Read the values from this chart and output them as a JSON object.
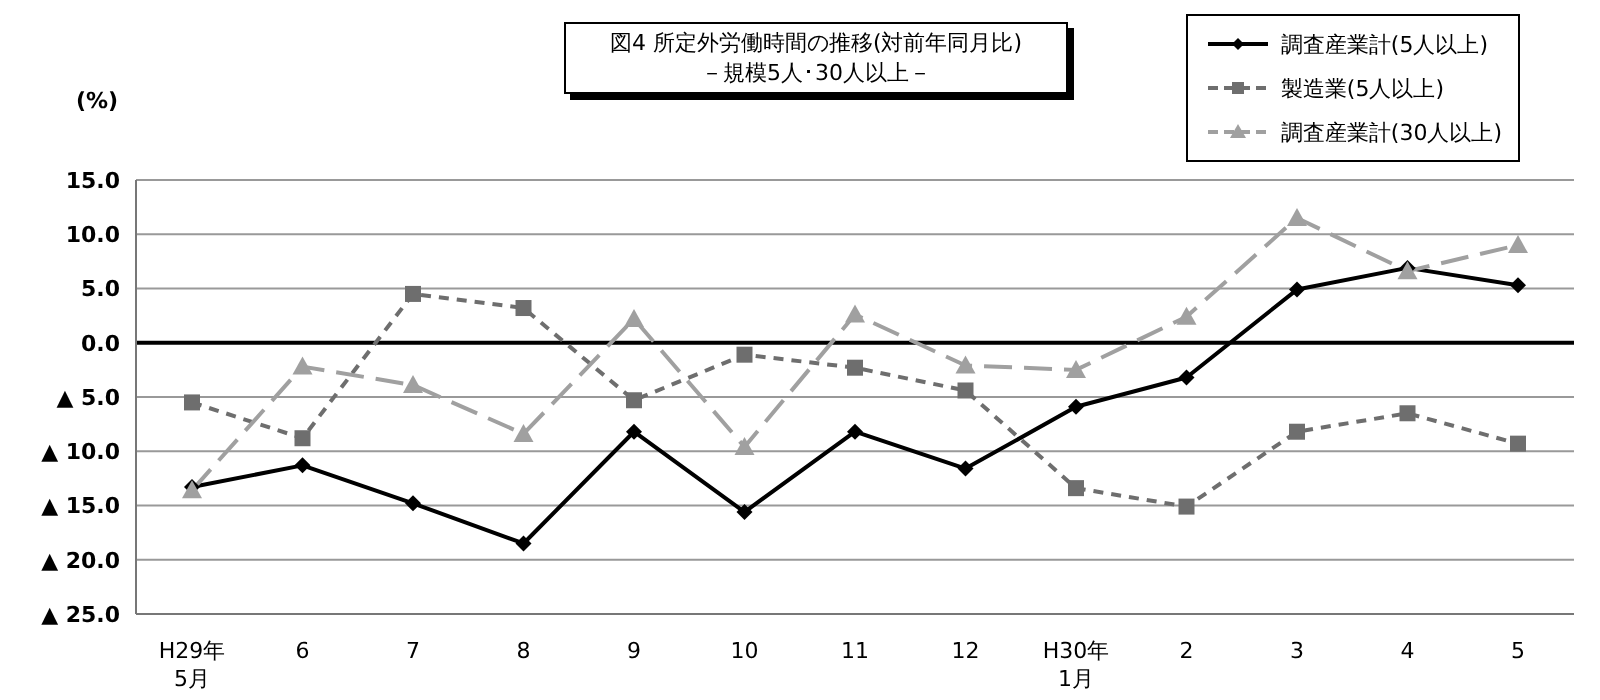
{
  "chart_data": {
    "type": "line",
    "title": "図4  所定外労働時間の推移(対前年同月比)",
    "subtitle": "－規模5人･30人以上－",
    "ylabel": "(%)",
    "categories": [
      "H29年\n5月",
      "6",
      "7",
      "8",
      "9",
      "10",
      "11",
      "12",
      "H30年\n1月",
      "2",
      "3",
      "4",
      "5"
    ],
    "series": [
      {
        "name": "調査産業計(5人以上)",
        "color": "#000000",
        "marker": "diamond",
        "line_style": "solid",
        "values": [
          -13.3,
          -11.3,
          -14.8,
          -18.5,
          -8.2,
          -15.6,
          -8.2,
          -11.6,
          -5.9,
          -3.2,
          4.9,
          6.9,
          5.3
        ]
      },
      {
        "name": "製造業(5人以上)",
        "color": "#6e6e6e",
        "marker": "square",
        "line_style": "dotted",
        "values": [
          -5.5,
          -8.8,
          4.5,
          3.2,
          -5.3,
          -1.1,
          -2.3,
          -4.4,
          -13.4,
          -15.1,
          -8.2,
          -6.5,
          -9.3
        ]
      },
      {
        "name": "調査産業計(30人以上)",
        "color": "#a0a0a0",
        "marker": "triangle",
        "line_style": "dashed",
        "values": [
          -13.6,
          -2.2,
          -3.9,
          -8.4,
          2.2,
          -9.6,
          2.6,
          -2.1,
          -2.5,
          2.4,
          11.5,
          6.6,
          9.0
        ]
      }
    ],
    "ylim": [
      -25,
      15
    ],
    "yticks": [
      {
        "value": 15,
        "label": "15.0"
      },
      {
        "value": 10,
        "label": "10.0"
      },
      {
        "value": 5,
        "label": "5.0"
      },
      {
        "value": 0,
        "label": "0.0"
      },
      {
        "value": -5,
        "label": "▲ 5.0"
      },
      {
        "value": -10,
        "label": "▲ 10.0"
      },
      {
        "value": -15,
        "label": "▲ 15.0"
      },
      {
        "value": -20,
        "label": "▲ 20.0"
      },
      {
        "value": -25,
        "label": "▲ 25.0"
      }
    ],
    "ref_lines": [
      {
        "axis": "y",
        "value": 0,
        "color": "#000000"
      }
    ],
    "grid": "y",
    "legend": "top right"
  }
}
